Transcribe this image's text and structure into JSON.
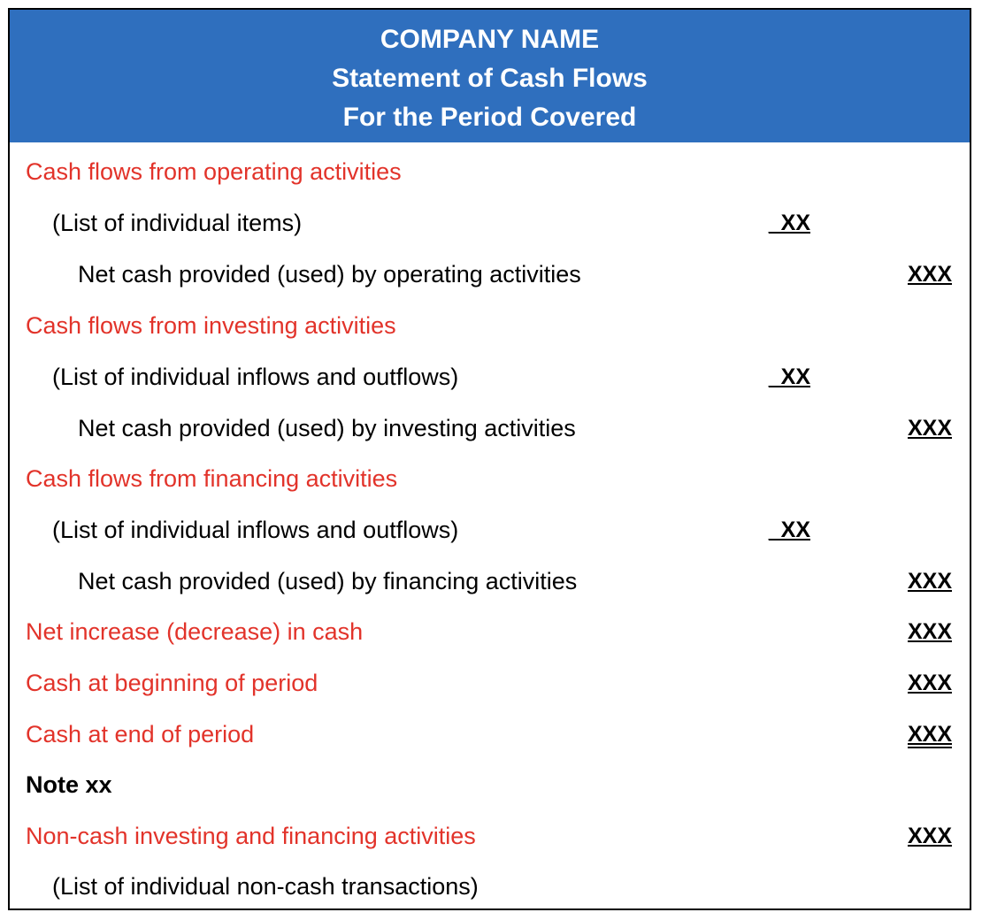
{
  "header": {
    "company": "COMPANY NAME",
    "title": "Statement of Cash Flows",
    "period": "For the Period Covered"
  },
  "rows": [
    {
      "label": "Cash flows from operating activities",
      "amount1": "",
      "amount2": ""
    },
    {
      "label": "(List of individual items)",
      "amount1": "_XX",
      "amount2": ""
    },
    {
      "label": "Net cash provided (used) by operating activities",
      "amount1": "",
      "amount2": "XXX"
    },
    {
      "label": "Cash flows from investing activities",
      "amount1": "",
      "amount2": ""
    },
    {
      "label": "(List of individual inflows and outflows)",
      "amount1": "_XX",
      "amount2": ""
    },
    {
      "label": "Net cash provided (used) by investing activities",
      "amount1": "",
      "amount2": "XXX"
    },
    {
      "label": "Cash flows from financing activities",
      "amount1": "",
      "amount2": ""
    },
    {
      "label": "(List of individual inflows and outflows)",
      "amount1": "_XX",
      "amount2": ""
    },
    {
      "label": "Net cash provided (used) by financing activities",
      "amount1": "",
      "amount2": "XXX"
    },
    {
      "label": "Net increase (decrease) in cash",
      "amount1": "",
      "amount2": "XXX"
    },
    {
      "label": "Cash at beginning of period",
      "amount1": "",
      "amount2": "XXX"
    },
    {
      "label": "Cash at end of period",
      "amount1": "",
      "amount2": "XXX"
    },
    {
      "label": "Note xx",
      "amount1": "",
      "amount2": ""
    },
    {
      "label": "Non-cash investing and financing activities",
      "amount1": "",
      "amount2": "XXX"
    },
    {
      "label": "(List of individual non-cash transactions)",
      "amount1": "",
      "amount2": ""
    }
  ],
  "colors": {
    "header_bg": "#2f6fbe",
    "section_text": "#e2332a",
    "body_text": "#000000"
  }
}
